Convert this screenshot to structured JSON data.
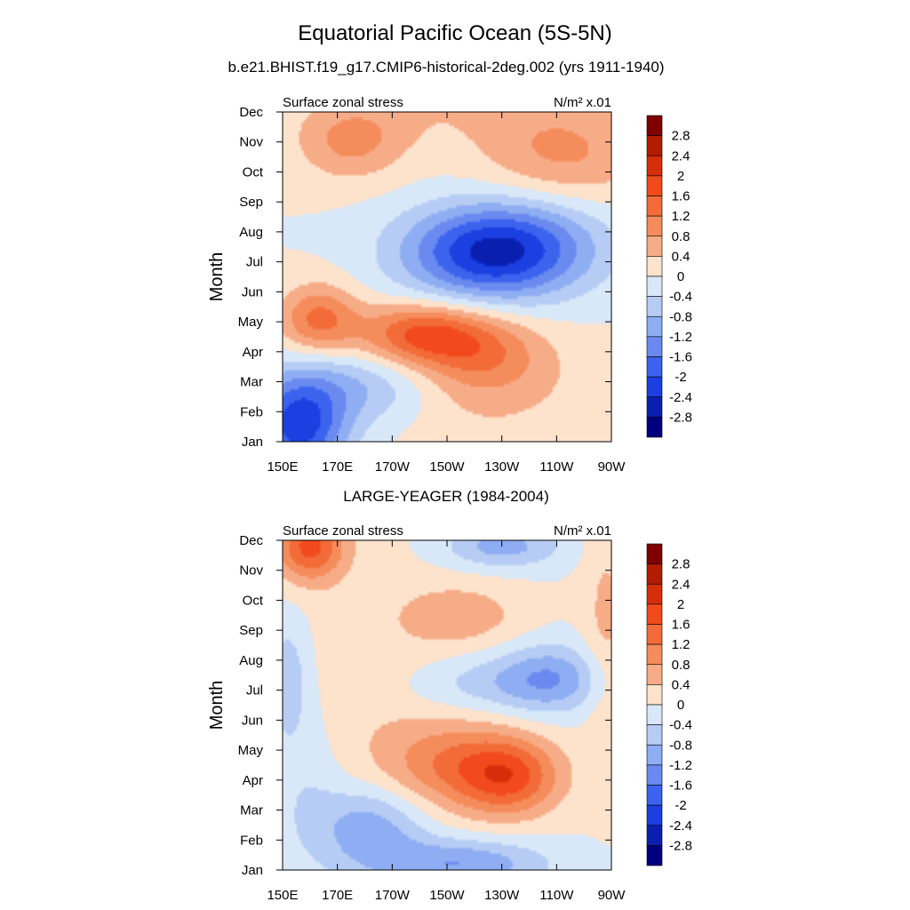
{
  "figure": {
    "title": "Equatorial Pacific Ocean (5S-5N)"
  },
  "colorbar": {
    "levels": [
      "2.8",
      "2.4",
      "2",
      "1.6",
      "1.2",
      "0.8",
      "0.4",
      "0",
      "-0.4",
      "-0.8",
      "-1.2",
      "-1.6",
      "-2",
      "-2.4",
      "-2.8"
    ],
    "colors": [
      "#7f0000",
      "#b21c00",
      "#d62e0a",
      "#f24a1c",
      "#f26b38",
      "#f58c5c",
      "#f7ac88",
      "#fde2cc",
      "#d8e8f8",
      "#b6ccf4",
      "#8fadf2",
      "#6a8af0",
      "#3b63ee",
      "#1b3fe0",
      "#0a1fb0",
      "#00007f"
    ]
  },
  "chart_data": [
    {
      "type": "heatmap",
      "title": "b.e21.BHIST.f19_g17.CMIP6-historical-2deg.002 (yrs 1911-1940)",
      "left_label": "Surface zonal stress",
      "units_label": "N/m² x.01",
      "ylabel": "Month",
      "xlabel": "",
      "x_ticks": [
        "150E",
        "170E",
        "170W",
        "150W",
        "130W",
        "110W",
        "90W"
      ],
      "y_ticks": [
        "Jan",
        "Feb",
        "Mar",
        "Apr",
        "May",
        "Jun",
        "Jul",
        "Aug",
        "Sep",
        "Oct",
        "Nov",
        "Dec"
      ],
      "xlim": [
        150,
        270
      ],
      "ylim": [
        1,
        12
      ],
      "levels": [
        -2.8,
        -2.4,
        -2.0,
        -1.6,
        -1.2,
        -0.8,
        -0.4,
        0,
        0.4,
        0.8,
        1.2,
        1.6,
        2.0,
        2.4,
        2.8
      ],
      "features": [
        {
          "lon": 156,
          "month": 1.5,
          "value": -2.2,
          "sx": 12,
          "sy": 1.2
        },
        {
          "lon": 180,
          "month": 2.8,
          "value": -0.9,
          "sx": 20,
          "sy": 0.9
        },
        {
          "lon": 225,
          "month": 7.3,
          "value": -2.3,
          "sx": 22,
          "sy": 1.1
        },
        {
          "lon": 245,
          "month": 7.8,
          "value": -0.6,
          "sx": 20,
          "sy": 1.2
        },
        {
          "lon": 163,
          "month": 5.1,
          "value": 1.3,
          "sx": 10,
          "sy": 0.8
        },
        {
          "lon": 200,
          "month": 4.6,
          "value": 1.5,
          "sx": 16,
          "sy": 0.7
        },
        {
          "lon": 222,
          "month": 4.0,
          "value": 0.9,
          "sx": 16,
          "sy": 0.9
        },
        {
          "lon": 175,
          "month": 11.0,
          "value": 0.9,
          "sx": 14,
          "sy": 0.9
        },
        {
          "lon": 252,
          "month": 10.6,
          "value": 0.9,
          "sx": 22,
          "sy": 1.3
        },
        {
          "lon": 220,
          "month": 2.8,
          "value": 0.5,
          "sx": 30,
          "sy": 1.4
        },
        {
          "lon": 205,
          "month": 12.0,
          "value": 0.3,
          "sx": 30,
          "sy": 0.8
        }
      ]
    },
    {
      "type": "heatmap",
      "title": "LARGE-YEAGER (1984-2004)",
      "left_label": "Surface zonal stress",
      "units_label": "N/m² x.01",
      "ylabel": "Month",
      "xlabel": "",
      "x_ticks": [
        "150E",
        "170E",
        "170W",
        "150W",
        "130W",
        "110W",
        "90W"
      ],
      "y_ticks": [
        "Jan",
        "Feb",
        "Mar",
        "Apr",
        "May",
        "Jun",
        "Jul",
        "Aug",
        "Sep",
        "Oct",
        "Nov",
        "Dec"
      ],
      "xlim": [
        150,
        270
      ],
      "ylim": [
        1,
        12
      ],
      "levels": [
        -2.8,
        -2.4,
        -2.0,
        -1.6,
        -1.2,
        -0.8,
        -0.4,
        0,
        0.4,
        0.8,
        1.2,
        1.6,
        2.0,
        2.4,
        2.8
      ],
      "features": [
        {
          "lon": 160,
          "month": 11.8,
          "value": 1.7,
          "sx": 9,
          "sy": 0.8
        },
        {
          "lon": 233,
          "month": 4.1,
          "value": 1.5,
          "sx": 13,
          "sy": 0.9
        },
        {
          "lon": 212,
          "month": 4.5,
          "value": 1.0,
          "sx": 18,
          "sy": 1.0
        },
        {
          "lon": 215,
          "month": 9.5,
          "value": 0.6,
          "sx": 15,
          "sy": 0.7
        },
        {
          "lon": 182,
          "month": 2.4,
          "value": -1.1,
          "sx": 14,
          "sy": 1.0
        },
        {
          "lon": 215,
          "month": 1.2,
          "value": -1.2,
          "sx": 22,
          "sy": 0.6
        },
        {
          "lon": 248,
          "month": 7.4,
          "value": -1.1,
          "sx": 14,
          "sy": 0.8
        },
        {
          "lon": 220,
          "month": 7.2,
          "value": -0.6,
          "sx": 20,
          "sy": 0.7
        },
        {
          "lon": 230,
          "month": 11.8,
          "value": -1.0,
          "sx": 15,
          "sy": 0.5
        },
        {
          "lon": 152,
          "month": 7.5,
          "value": -0.7,
          "sx": 6,
          "sy": 1.5
        },
        {
          "lon": 158,
          "month": 4.0,
          "value": -0.4,
          "sx": 10,
          "sy": 2.0
        },
        {
          "lon": 268,
          "month": 9.0,
          "value": 0.5,
          "sx": 6,
          "sy": 3.0
        },
        {
          "lon": 185,
          "month": 7.0,
          "value": 0.3,
          "sx": 30,
          "sy": 3.0
        }
      ]
    }
  ]
}
